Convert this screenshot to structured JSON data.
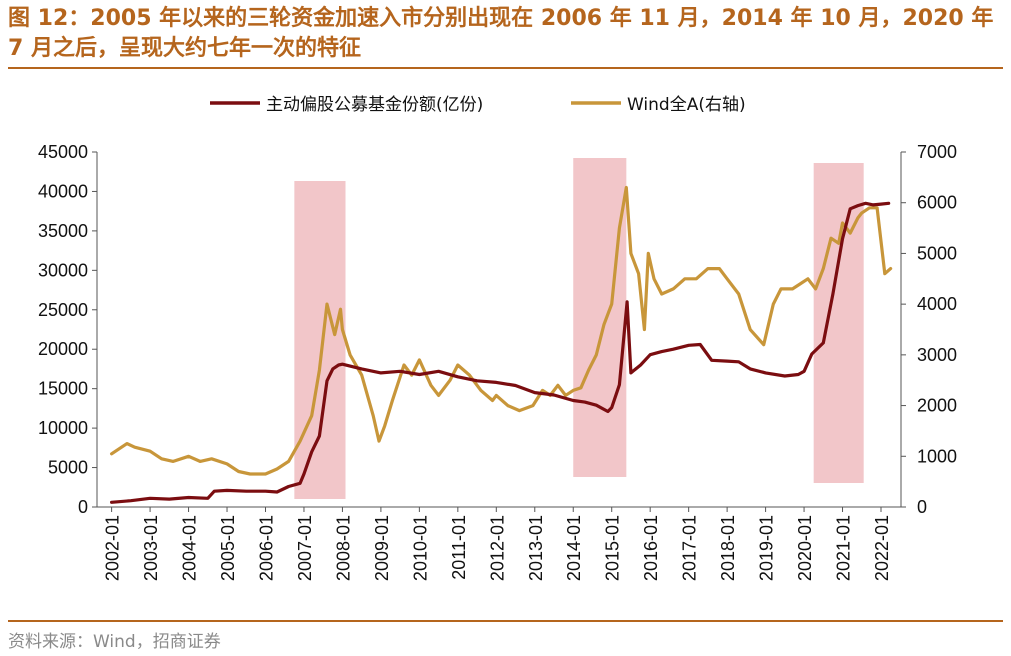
{
  "header": {
    "title": "图 12：2005 年以来的三轮资金加速入市分别出现在 2006 年 11 月，2014 年 10 月，2020 年 7 月之后，呈现大约七年一次的特征"
  },
  "footer": {
    "source": "资料来源：Wind，招商证券"
  },
  "colors": {
    "series_fund": "#7b0d10",
    "series_wind": "#c8963a",
    "shade": "#f2c6c9",
    "accent": "#b5651d"
  },
  "chart_data": {
    "type": "line",
    "title": "",
    "x_categories": [
      "2002-01",
      "2003-01",
      "2004-01",
      "2005-01",
      "2006-01",
      "2007-01",
      "2008-01",
      "2009-01",
      "2010-01",
      "2011-01",
      "2012-01",
      "2013-01",
      "2014-01",
      "2015-01",
      "2016-01",
      "2017-01",
      "2018-01",
      "2019-01",
      "2020-01",
      "2021-01",
      "2022-01"
    ],
    "y_left": {
      "label": "主动偏股公募基金份额(亿份)",
      "min": 0,
      "max": 45000,
      "ticks": [
        "0",
        "5000",
        "10000",
        "15000",
        "20000",
        "25000",
        "30000",
        "35000",
        "40000",
        "45000"
      ]
    },
    "y_right": {
      "label": "Wind全A(右轴)",
      "min": 0,
      "max": 7000,
      "ticks": [
        "0",
        "1000",
        "2000",
        "3000",
        "4000",
        "5000",
        "6000",
        "7000"
      ]
    },
    "legend": [
      "主动偏股公募基金份额(亿份)",
      "Wind全A(右轴)"
    ],
    "shaded_periods": [
      {
        "start": 2006.75,
        "end": 2008.08
      },
      {
        "start": 2014.0,
        "end": 2015.38
      },
      {
        "start": 2020.25,
        "end": 2021.55
      }
    ],
    "series": [
      {
        "name": "主动偏股公募基金份额(亿份)",
        "axis": "left",
        "x": [
          2002.0,
          2002.5,
          2003.0,
          2003.5,
          2004.0,
          2004.5,
          2004.67,
          2005.0,
          2005.5,
          2006.0,
          2006.3,
          2006.6,
          2006.9,
          2007.0,
          2007.2,
          2007.4,
          2007.6,
          2007.75,
          2007.9,
          2008.0,
          2008.5,
          2009.0,
          2009.5,
          2010.0,
          2010.5,
          2011.0,
          2011.5,
          2012.0,
          2012.5,
          2013.0,
          2013.5,
          2014.0,
          2014.3,
          2014.6,
          2014.9,
          2015.0,
          2015.2,
          2015.4,
          2015.5,
          2015.75,
          2016.0,
          2016.3,
          2016.6,
          2017.0,
          2017.3,
          2017.6,
          2018.0,
          2018.3,
          2018.6,
          2019.0,
          2019.5,
          2019.85,
          2020.0,
          2020.2,
          2020.5,
          2020.75,
          2021.0,
          2021.2,
          2021.4,
          2021.6,
          2021.8,
          2022.0,
          2022.2
        ],
        "values": [
          600,
          800,
          1100,
          1000,
          1200,
          1100,
          2000,
          2100,
          2000,
          2000,
          1900,
          2600,
          3000,
          4200,
          7000,
          9000,
          16000,
          17500,
          18000,
          18100,
          17500,
          17000,
          17200,
          16800,
          17200,
          16500,
          16000,
          15800,
          15400,
          14500,
          14200,
          13500,
          13300,
          12900,
          12100,
          12600,
          15500,
          26000,
          17000,
          18000,
          19300,
          19700,
          20000,
          20500,
          20600,
          18600,
          18500,
          18400,
          17500,
          17000,
          16600,
          16800,
          17200,
          19400,
          20800,
          27000,
          34000,
          37800,
          38200,
          38500,
          38300,
          38400,
          38500
        ]
      },
      {
        "name": "Wind全A(右轴)",
        "axis": "right",
        "x": [
          2002.0,
          2002.2,
          2002.4,
          2002.6,
          2003.0,
          2003.3,
          2003.6,
          2004.0,
          2004.3,
          2004.6,
          2005.0,
          2005.3,
          2005.6,
          2006.0,
          2006.3,
          2006.6,
          2006.9,
          2007.2,
          2007.4,
          2007.6,
          2007.8,
          2007.95,
          2008.0,
          2008.2,
          2008.5,
          2008.8,
          2008.95,
          2009.1,
          2009.3,
          2009.6,
          2009.8,
          2010.0,
          2010.3,
          2010.5,
          2010.8,
          2011.0,
          2011.3,
          2011.6,
          2011.9,
          2012.0,
          2012.3,
          2012.6,
          2012.95,
          2013.2,
          2013.4,
          2013.6,
          2013.8,
          2014.0,
          2014.2,
          2014.4,
          2014.6,
          2014.8,
          2015.0,
          2015.2,
          2015.38,
          2015.5,
          2015.7,
          2015.85,
          2015.95,
          2016.1,
          2016.3,
          2016.6,
          2016.9,
          2017.2,
          2017.5,
          2017.8,
          2018.0,
          2018.3,
          2018.6,
          2018.95,
          2019.2,
          2019.4,
          2019.7,
          2019.9,
          2020.1,
          2020.3,
          2020.5,
          2020.7,
          2020.9,
          2021.0,
          2021.2,
          2021.4,
          2021.5,
          2021.7,
          2021.9,
          2022.1,
          2022.25
        ],
        "values": [
          1050,
          1150,
          1250,
          1180,
          1100,
          950,
          900,
          1000,
          900,
          950,
          850,
          700,
          650,
          650,
          750,
          900,
          1300,
          1800,
          2700,
          4000,
          3400,
          3900,
          3500,
          3000,
          2600,
          1800,
          1300,
          1600,
          2100,
          2800,
          2600,
          2900,
          2400,
          2200,
          2500,
          2800,
          2600,
          2300,
          2100,
          2200,
          2000,
          1900,
          2000,
          2300,
          2200,
          2400,
          2200,
          2300,
          2350,
          2700,
          3000,
          3600,
          4000,
          5500,
          6300,
          5000,
          4600,
          3500,
          5000,
          4500,
          4200,
          4300,
          4500,
          4500,
          4700,
          4700,
          4500,
          4200,
          3500,
          3200,
          4000,
          4300,
          4300,
          4400,
          4500,
          4300,
          4700,
          5300,
          5200,
          5600,
          5400,
          5700,
          5800,
          5900,
          5900,
          4600,
          4700
        ]
      }
    ]
  }
}
